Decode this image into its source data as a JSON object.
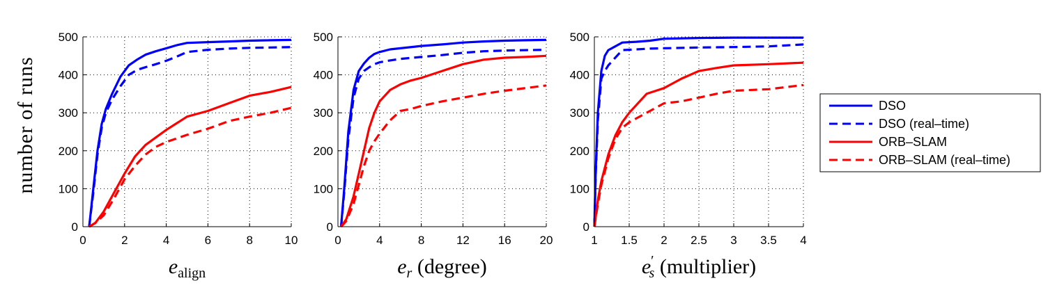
{
  "ylabel": "number of runs",
  "legend": {
    "placement": "right",
    "entries": [
      {
        "label": "DSO",
        "color": "#0000ff",
        "dash": "solid"
      },
      {
        "label": "DSO (real–time)",
        "color": "#0000ff",
        "dash": "dashed"
      },
      {
        "label": "ORB–SLAM",
        "color": "#ff0000",
        "dash": "solid"
      },
      {
        "label": "ORB–SLAM (real–time)",
        "color": "#ff0000",
        "dash": "dashed"
      }
    ]
  },
  "chart_data": [
    {
      "type": "line",
      "xlabel": {
        "var": "e",
        "sub": "align",
        "prime": false,
        "suffix": ""
      },
      "xlim": [
        0,
        10
      ],
      "ylim": [
        0,
        500
      ],
      "xticks": [
        0,
        2,
        4,
        6,
        8,
        10
      ],
      "yticks": [
        0,
        100,
        200,
        300,
        400,
        500
      ],
      "grid": true,
      "series": [
        {
          "name": "DSO",
          "color": "#0000ff",
          "dash": "solid",
          "x": [
            0.3,
            0.5,
            0.7,
            0.9,
            1.1,
            1.4,
            1.8,
            2.2,
            2.6,
            3.0,
            3.5,
            4.0,
            4.5,
            5.0,
            6.0,
            7.0,
            8.0,
            9.0,
            10.0
          ],
          "y": [
            0,
            100,
            200,
            270,
            310,
            350,
            395,
            425,
            440,
            453,
            462,
            470,
            478,
            484,
            486,
            488,
            490,
            491,
            492
          ]
        },
        {
          "name": "DSO (real–time)",
          "color": "#0000ff",
          "dash": "dashed",
          "x": [
            0.3,
            0.5,
            0.7,
            0.9,
            1.1,
            1.4,
            1.8,
            2.2,
            2.6,
            3.0,
            3.5,
            4.0,
            4.5,
            5.0,
            6.0,
            7.0,
            8.0,
            9.0,
            10.0
          ],
          "y": [
            0,
            90,
            190,
            260,
            300,
            335,
            370,
            400,
            413,
            420,
            428,
            437,
            448,
            460,
            466,
            469,
            471,
            472,
            473
          ]
        },
        {
          "name": "ORB–SLAM",
          "color": "#ff0000",
          "dash": "solid",
          "x": [
            0.3,
            0.6,
            1.0,
            1.5,
            2.0,
            2.5,
            3.0,
            3.5,
            4.0,
            5.0,
            6.0,
            7.0,
            8.0,
            9.0,
            10.0
          ],
          "y": [
            0,
            10,
            40,
            90,
            140,
            185,
            215,
            235,
            255,
            290,
            305,
            325,
            345,
            355,
            368
          ]
        },
        {
          "name": "ORB–SLAM (real–time)",
          "color": "#ff0000",
          "dash": "dashed",
          "x": [
            0.3,
            0.6,
            1.0,
            1.5,
            2.0,
            2.5,
            3.0,
            3.5,
            4.0,
            5.0,
            6.0,
            7.0,
            8.0,
            9.0,
            10.0
          ],
          "y": [
            0,
            10,
            30,
            75,
            125,
            160,
            190,
            210,
            223,
            242,
            258,
            278,
            290,
            300,
            313
          ]
        }
      ]
    },
    {
      "type": "line",
      "xlabel": {
        "var": "e",
        "sub": "r",
        "prime": false,
        "suffix": " (degree)"
      },
      "xlim": [
        0,
        20
      ],
      "ylim": [
        0,
        500
      ],
      "xticks": [
        0,
        4,
        8,
        12,
        16,
        20
      ],
      "yticks": [
        0,
        100,
        200,
        300,
        400,
        500
      ],
      "grid": true,
      "series": [
        {
          "name": "DSO",
          "color": "#0000ff",
          "dash": "solid",
          "x": [
            0.3,
            0.6,
            1.0,
            1.5,
            2.0,
            2.5,
            3.0,
            3.5,
            4.0,
            5.0,
            6.0,
            8.0,
            10.0,
            12.0,
            14.0,
            16.0,
            18.0,
            20.0
          ],
          "y": [
            0,
            100,
            250,
            360,
            410,
            430,
            445,
            455,
            460,
            467,
            470,
            476,
            480,
            485,
            488,
            490,
            491,
            492
          ]
        },
        {
          "name": "DSO (real–time)",
          "color": "#0000ff",
          "dash": "dashed",
          "x": [
            0.3,
            0.6,
            1.0,
            1.5,
            2.0,
            2.5,
            3.0,
            3.5,
            4.0,
            5.0,
            6.0,
            8.0,
            10.0,
            12.0,
            14.0,
            16.0,
            18.0,
            20.0
          ],
          "y": [
            0,
            90,
            230,
            340,
            390,
            410,
            420,
            428,
            433,
            438,
            442,
            447,
            452,
            458,
            462,
            464,
            465,
            466
          ]
        },
        {
          "name": "ORB–SLAM",
          "color": "#ff0000",
          "dash": "solid",
          "x": [
            0.3,
            0.8,
            1.5,
            2.0,
            2.5,
            3.0,
            3.5,
            4.0,
            5.0,
            6.0,
            7.0,
            8.0,
            10.0,
            12.0,
            14.0,
            16.0,
            18.0,
            20.0
          ],
          "y": [
            0,
            20,
            80,
            140,
            200,
            260,
            300,
            330,
            360,
            375,
            385,
            392,
            410,
            428,
            440,
            445,
            447,
            450
          ]
        },
        {
          "name": "ORB–SLAM (real–time)",
          "color": "#ff0000",
          "dash": "dashed",
          "x": [
            0.3,
            0.8,
            1.5,
            2.0,
            2.5,
            3.0,
            3.5,
            4.0,
            5.0,
            6.0,
            7.0,
            8.0,
            10.0,
            12.0,
            14.0,
            16.0,
            18.0,
            20.0
          ],
          "y": [
            0,
            15,
            60,
            110,
            160,
            200,
            225,
            245,
            280,
            305,
            310,
            318,
            330,
            340,
            350,
            358,
            365,
            372
          ]
        }
      ]
    },
    {
      "type": "line",
      "xlabel": {
        "var": "e",
        "sub": "s",
        "prime": true,
        "suffix": " (multiplier)"
      },
      "xlim": [
        1,
        4
      ],
      "ylim": [
        0,
        500
      ],
      "xticks": [
        1,
        1.5,
        2,
        2.5,
        3,
        3.5,
        4
      ],
      "yticks": [
        0,
        100,
        200,
        300,
        400,
        500
      ],
      "grid": true,
      "series": [
        {
          "name": "DSO",
          "color": "#0000ff",
          "dash": "solid",
          "x": [
            1.0,
            1.02,
            1.05,
            1.1,
            1.15,
            1.2,
            1.3,
            1.4,
            1.6,
            1.8,
            2.0,
            2.5,
            3.0,
            3.5,
            4.0
          ],
          "y": [
            0,
            150,
            300,
            410,
            450,
            465,
            475,
            485,
            487,
            490,
            495,
            497,
            498,
            498,
            498
          ]
        },
        {
          "name": "DSO (real–time)",
          "color": "#0000ff",
          "dash": "dashed",
          "x": [
            1.0,
            1.02,
            1.05,
            1.1,
            1.15,
            1.2,
            1.3,
            1.4,
            1.6,
            1.8,
            2.0,
            2.5,
            3.0,
            3.5,
            4.0
          ],
          "y": [
            0,
            140,
            280,
            390,
            410,
            425,
            445,
            465,
            467,
            469,
            470,
            472,
            473,
            475,
            480
          ]
        },
        {
          "name": "ORB–SLAM",
          "color": "#ff0000",
          "dash": "solid",
          "x": [
            1.0,
            1.05,
            1.1,
            1.2,
            1.3,
            1.4,
            1.5,
            1.6,
            1.75,
            2.0,
            2.25,
            2.5,
            2.75,
            3.0,
            3.5,
            4.0
          ],
          "y": [
            0,
            70,
            120,
            190,
            240,
            275,
            300,
            320,
            350,
            365,
            390,
            410,
            418,
            425,
            428,
            432
          ]
        },
        {
          "name": "ORB–SLAM (real–time)",
          "color": "#ff0000",
          "dash": "dashed",
          "x": [
            1.0,
            1.05,
            1.1,
            1.2,
            1.3,
            1.4,
            1.5,
            1.6,
            1.75,
            2.0,
            2.25,
            2.5,
            2.75,
            3.0,
            3.5,
            4.0
          ],
          "y": [
            0,
            60,
            110,
            180,
            230,
            260,
            275,
            285,
            300,
            325,
            330,
            340,
            350,
            358,
            362,
            373
          ]
        }
      ]
    }
  ]
}
